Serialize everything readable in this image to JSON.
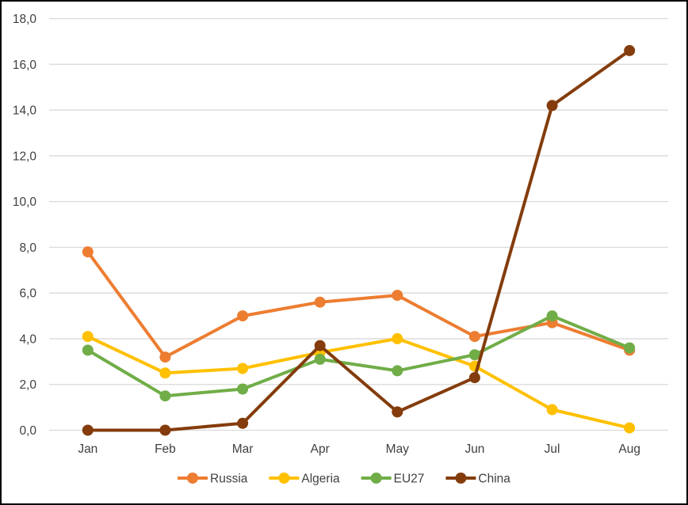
{
  "chart": {
    "background_color": "#FFFFFF",
    "frame_border_color": "#000000",
    "gridline_color": "#D9D9D9",
    "text_color": "#404040"
  },
  "chart_data": {
    "type": "line",
    "title": "",
    "xlabel": "",
    "ylabel": "",
    "categories": [
      "Jan",
      "Feb",
      "Mar",
      "Apr",
      "May",
      "Jun",
      "Jul",
      "Aug"
    ],
    "series": [
      {
        "name": "Russia",
        "color": "#ED7D31",
        "values": [
          7.8,
          3.2,
          5.0,
          5.6,
          5.9,
          4.1,
          4.7,
          3.5
        ]
      },
      {
        "name": "Algeria",
        "color": "#FFC000",
        "values": [
          4.1,
          2.5,
          2.7,
          3.4,
          4.0,
          2.8,
          0.9,
          0.1
        ]
      },
      {
        "name": "EU27",
        "color": "#70AD47",
        "values": [
          3.5,
          1.5,
          1.8,
          3.1,
          2.6,
          3.3,
          5.0,
          3.6
        ]
      },
      {
        "name": "China",
        "color": "#843C0C",
        "values": [
          0.0,
          0.0,
          0.3,
          3.7,
          0.8,
          2.3,
          14.2,
          16.6
        ]
      }
    ],
    "ylim": [
      0,
      18
    ],
    "y_step": 2,
    "y_tick_labels": [
      "0,0",
      "2,0",
      "4,0",
      "6,0",
      "8,0",
      "10,0",
      "12,0",
      "14,0",
      "16,0",
      "18,0"
    ],
    "grid": true,
    "legend_position": "bottom-center",
    "legend_entries": [
      "Russia",
      "Algeria",
      "EU27",
      "China"
    ],
    "marker": "circle"
  }
}
